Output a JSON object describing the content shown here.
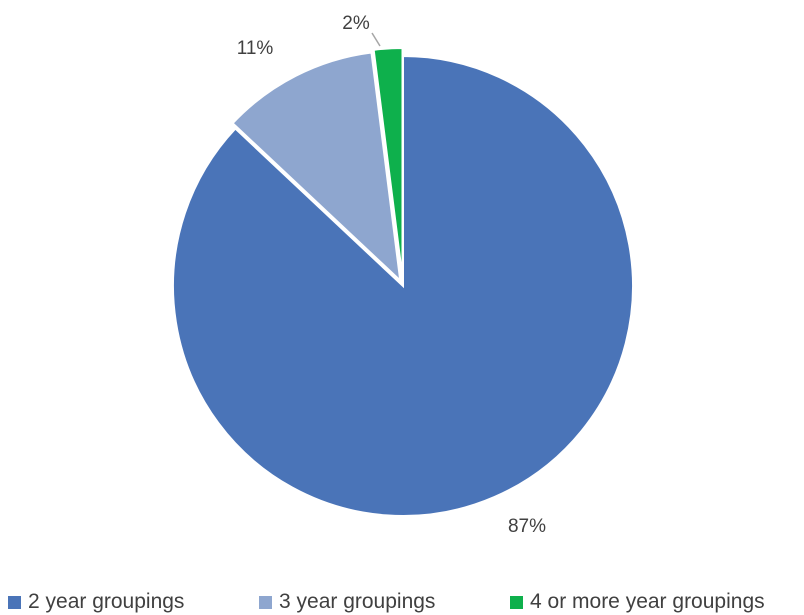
{
  "chart_data": {
    "type": "pie",
    "title": "",
    "slices": [
      {
        "label": "2 year groupings",
        "value": 87,
        "display": "87%",
        "color": "#4a74b8"
      },
      {
        "label": "3 year groupings",
        "value": 11,
        "display": "11%",
        "color": "#8ea6cf"
      },
      {
        "label": "4 or more year groupings",
        "value": 2,
        "display": "2%",
        "color": "#0eb04c"
      }
    ],
    "legend_position": "bottom",
    "exploded": true,
    "start_angle": "12 o'clock, clockwise"
  },
  "legend": {
    "items": [
      {
        "label": "2 year groupings",
        "color": "#4a74b8"
      },
      {
        "label": "3 year groupings",
        "color": "#8ea6cf"
      },
      {
        "label": "4 or more year groupings",
        "color": "#0eb04c"
      }
    ]
  }
}
